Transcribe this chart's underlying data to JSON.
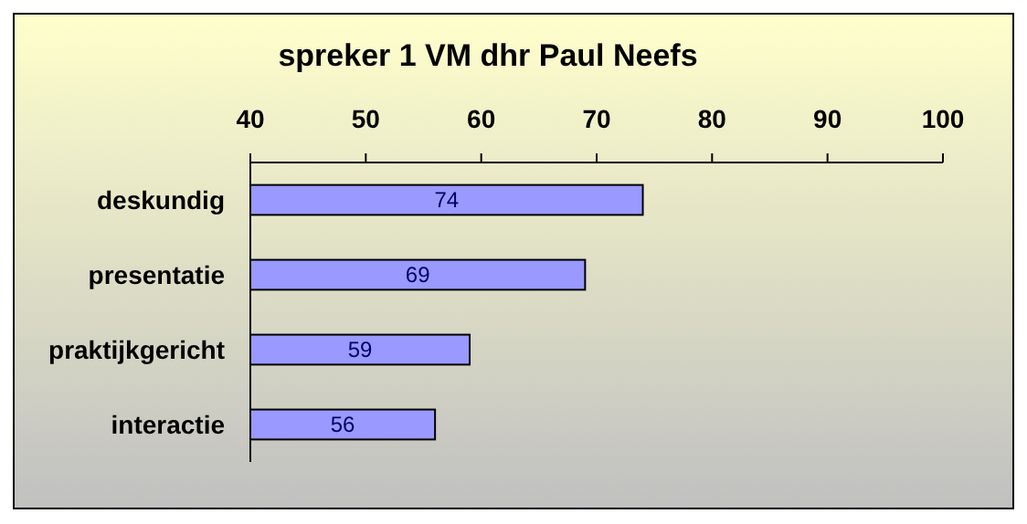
{
  "chart_data": {
    "type": "bar",
    "orientation": "horizontal",
    "title": "spreker 1 VM dhr Paul Neefs",
    "categories": [
      "deskundig",
      "presentatie",
      "praktijkgericht",
      "interactie"
    ],
    "values": [
      74,
      69,
      59,
      56
    ],
    "color": "#9999ff",
    "xlim": [
      40,
      100
    ],
    "xticks": [
      40,
      50,
      60,
      70,
      80,
      90,
      100
    ],
    "data_labels": true,
    "grid": false
  }
}
